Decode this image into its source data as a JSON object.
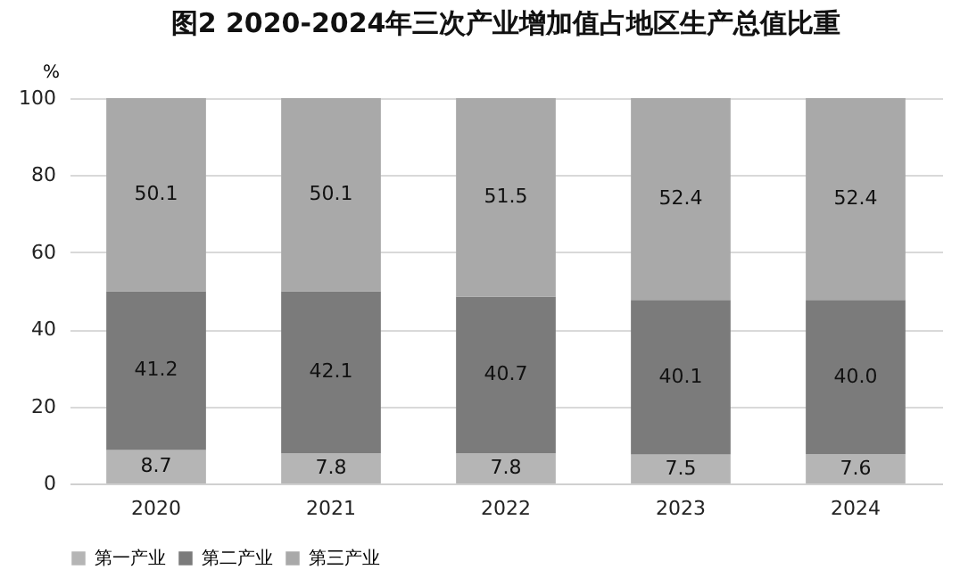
{
  "chart_data": {
    "type": "bar",
    "title": "图2  2020-2024年三次产业增加值占地区生产总值比重",
    "ylabel": "%",
    "categories": [
      "2020",
      "2021",
      "2022",
      "2023",
      "2024"
    ],
    "stacked": true,
    "ylim": [
      0,
      100
    ],
    "yticks": [
      0,
      20,
      40,
      60,
      80,
      100
    ],
    "grid": "y",
    "legend": "bottom",
    "series": [
      {
        "name": "第一产业",
        "color": "#b5b5b5",
        "values": [
          8.7,
          7.8,
          7.8,
          7.5,
          7.6
        ],
        "value_labels": [
          "8.7",
          "7.8",
          "7.8",
          "7.5",
          "7.6"
        ]
      },
      {
        "name": "第二产业",
        "color": "#7b7b7b",
        "values": [
          41.2,
          42.1,
          40.7,
          40.1,
          40.0
        ],
        "value_labels": [
          "41.2",
          "42.1",
          "40.7",
          "40.1",
          "40.0"
        ]
      },
      {
        "name": "第三产业",
        "color": "#a9a9a9",
        "values": [
          50.1,
          50.1,
          51.5,
          52.4,
          52.4
        ],
        "value_labels": [
          "50.1",
          "50.1",
          "51.5",
          "52.4",
          "52.4"
        ]
      }
    ]
  }
}
